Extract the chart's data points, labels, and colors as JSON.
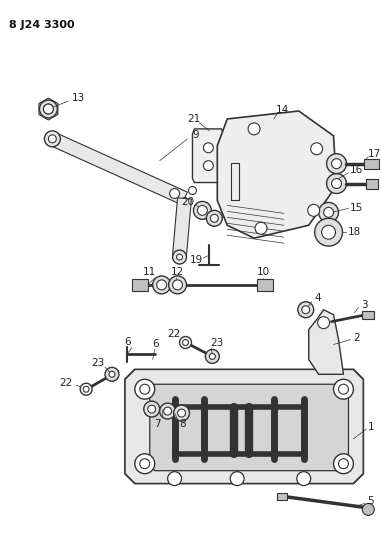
{
  "title": "8 J24 3300",
  "bg_color": "#ffffff",
  "line_color": "#333333",
  "fig_width": 3.82,
  "fig_height": 5.33,
  "dpi": 100
}
